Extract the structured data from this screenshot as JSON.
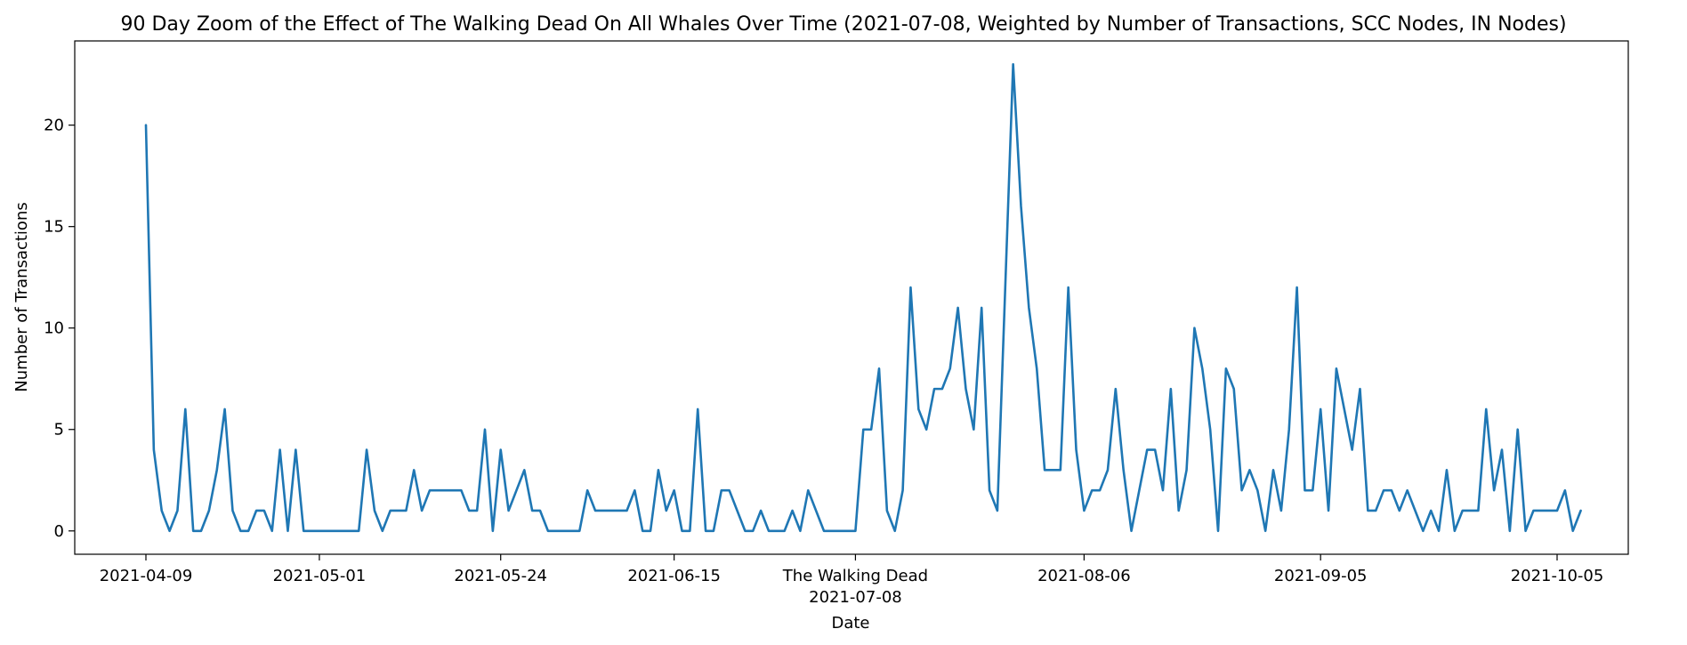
{
  "chart_data": {
    "type": "line",
    "title": "90 Day Zoom of the Effect of The Walking Dead On All Whales Over Time (2021-07-08, Weighted by Number of Transactions, SCC Nodes, IN Nodes)",
    "xlabel": "Date",
    "ylabel": "Number of Transactions",
    "x_start_date": "2021-04-09",
    "x_end_date": "2021-10-05",
    "ylim": [
      -1.15,
      24.15
    ],
    "x_ticks": [
      {
        "label": "2021-04-09",
        "date": "2021-04-09"
      },
      {
        "label": "2021-05-01",
        "date": "2021-05-01"
      },
      {
        "label": "2021-05-24",
        "date": "2021-05-24"
      },
      {
        "label": "2021-06-15",
        "date": "2021-06-15"
      },
      {
        "label": "The Walking Dead",
        "label2": "2021-07-08",
        "date": "2021-07-08"
      },
      {
        "label": "2021-08-06",
        "date": "2021-08-06"
      },
      {
        "label": "2021-09-05",
        "date": "2021-09-05"
      },
      {
        "label": "2021-10-05",
        "date": "2021-10-05"
      }
    ],
    "y_ticks": [
      0,
      5,
      10,
      15,
      20
    ],
    "grid": false,
    "legend": "none",
    "color": "#1f77b4",
    "series": [
      {
        "values": [
          20,
          4,
          1,
          0,
          1,
          6,
          0,
          0,
          1,
          3,
          6,
          1,
          0,
          0,
          1,
          1,
          0,
          4,
          0,
          4,
          0,
          0,
          0,
          0,
          0,
          0,
          0,
          0,
          4,
          1,
          0,
          1,
          1,
          1,
          3,
          1,
          2,
          2,
          2,
          2,
          2,
          1,
          1,
          5,
          0,
          4,
          1,
          2,
          3,
          1,
          1,
          0,
          0,
          0,
          0,
          0,
          2,
          1,
          1,
          1,
          1,
          1,
          2,
          0,
          0,
          3,
          1,
          2,
          0,
          0,
          6,
          0,
          0,
          2,
          2,
          1,
          0,
          0,
          1,
          0,
          0,
          0,
          1,
          0,
          2,
          1,
          0,
          0,
          0,
          0,
          0,
          5,
          5,
          8,
          1,
          0,
          2,
          12,
          6,
          5,
          7,
          7,
          8,
          11,
          7,
          5,
          11,
          2,
          1,
          12,
          23,
          16,
          11,
          8,
          3,
          3,
          3,
          12,
          4,
          1,
          2,
          2,
          3,
          7,
          3,
          0,
          2,
          4,
          4,
          2,
          7,
          1,
          3,
          10,
          8,
          5,
          0,
          8,
          7,
          2,
          3,
          2,
          0,
          3,
          1,
          5,
          12,
          2,
          2,
          6,
          1,
          8,
          6,
          4,
          7,
          1,
          1,
          2,
          2,
          1,
          2,
          1,
          0,
          1,
          0,
          3,
          0,
          1,
          1,
          1,
          6,
          2,
          4,
          0,
          5,
          0,
          1,
          1,
          1,
          1,
          2,
          0,
          1
        ]
      }
    ]
  }
}
